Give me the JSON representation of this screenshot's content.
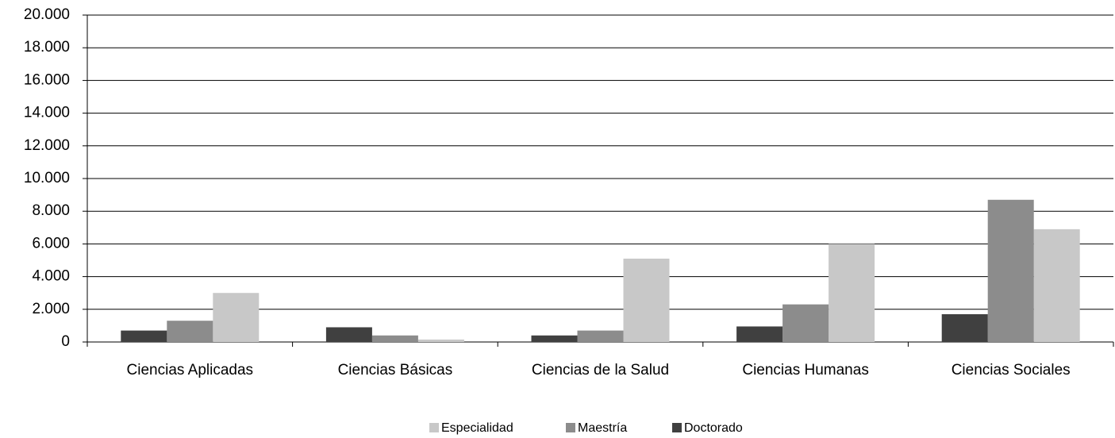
{
  "chart_data": {
    "type": "bar",
    "categories": [
      "Ciencias Aplicadas",
      "Ciencias Básicas",
      "Ciencias de la Salud",
      "Ciencias Humanas",
      "Ciencias Sociales"
    ],
    "series": [
      {
        "name": "Especialidad",
        "color": "#c8c8c8",
        "values": [
          3000,
          150,
          5100,
          6000,
          6900
        ]
      },
      {
        "name": "Maestría",
        "color": "#8c8c8c",
        "values": [
          1300,
          400,
          700,
          2300,
          8700
        ]
      },
      {
        "name": "Doctorado",
        "color": "#404040",
        "values": [
          700,
          900,
          400,
          950,
          1700
        ]
      }
    ],
    "ylim": [
      0,
      20000
    ],
    "yticks": [
      0,
      {
        "value": 2000,
        "label": "2.000"
      },
      {
        "value": 4000,
        "label": "4.000"
      },
      {
        "value": 6000,
        "label": "6.000"
      },
      {
        "value": 8000,
        "label": "8.000"
      },
      {
        "value": 10000,
        "label": "10.000"
      },
      {
        "value": 12000,
        "label": "12.000"
      },
      {
        "value": 14000,
        "label": "14.000"
      },
      {
        "value": 16000,
        "label": "16.000"
      },
      {
        "value": 18000,
        "label": "18.000"
      },
      {
        "value": 20000,
        "label": "20.000"
      }
    ],
    "grid": true,
    "legend": "bottom"
  }
}
